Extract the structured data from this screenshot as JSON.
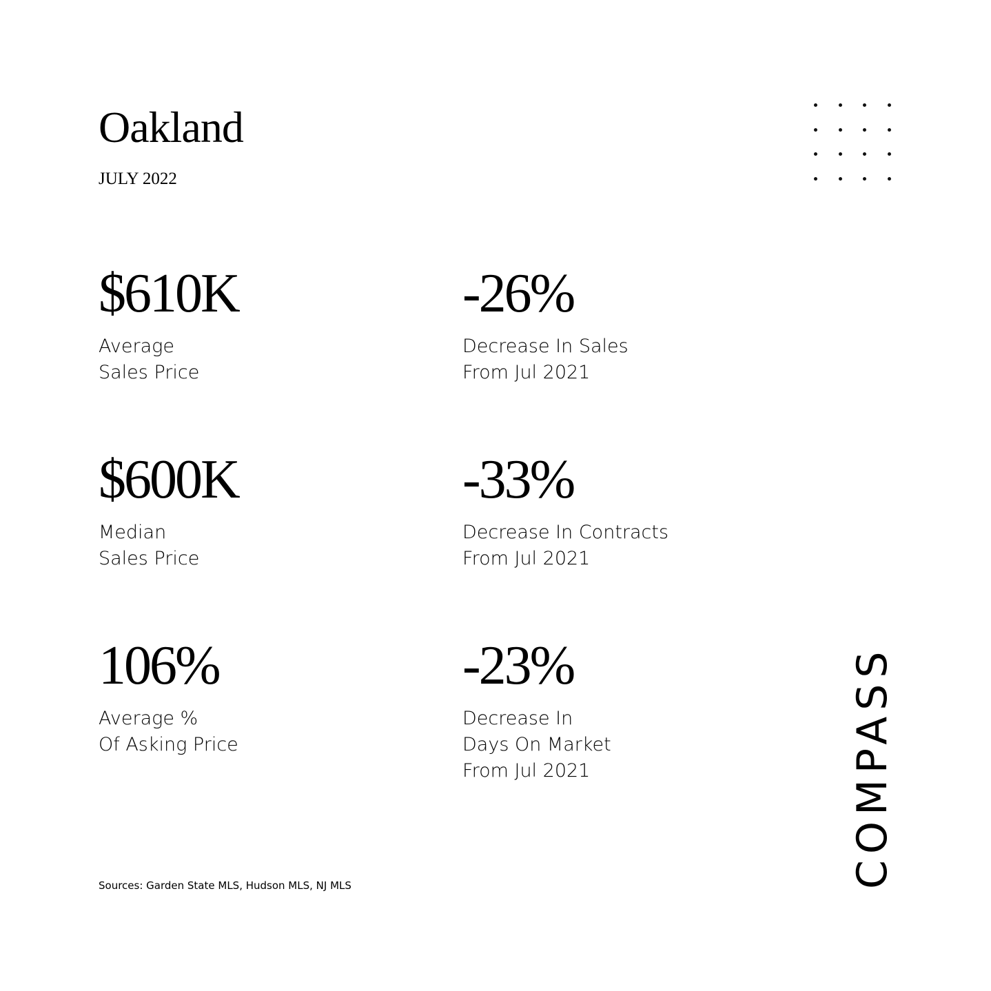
{
  "header": {
    "title": "Oakland",
    "date": "JULY 2022"
  },
  "stats": [
    {
      "value": "$610K",
      "label_lines": [
        "Average",
        "Sales Price"
      ]
    },
    {
      "value": "-26%",
      "label_lines": [
        "Decrease In Sales",
        "From Jul 2021"
      ]
    },
    {
      "value": "$600K",
      "label_lines": [
        "Median",
        "Sales Price"
      ]
    },
    {
      "value": "-33%",
      "label_lines": [
        "Decrease In Contracts",
        "From Jul 2021"
      ]
    },
    {
      "value": "106%",
      "label_lines": [
        "Average %",
        "Of Asking Price"
      ]
    },
    {
      "value": "-23%",
      "label_lines": [
        "Decrease In",
        "Days On Market",
        "From Jul 2021"
      ]
    }
  ],
  "footer": {
    "sources": "Sources: Garden State MLS, Hudson MLS, NJ MLS"
  },
  "logo": {
    "text": "COMPASS"
  },
  "decoration": {
    "icon": "dot-grid-icon",
    "color": "#111111"
  }
}
